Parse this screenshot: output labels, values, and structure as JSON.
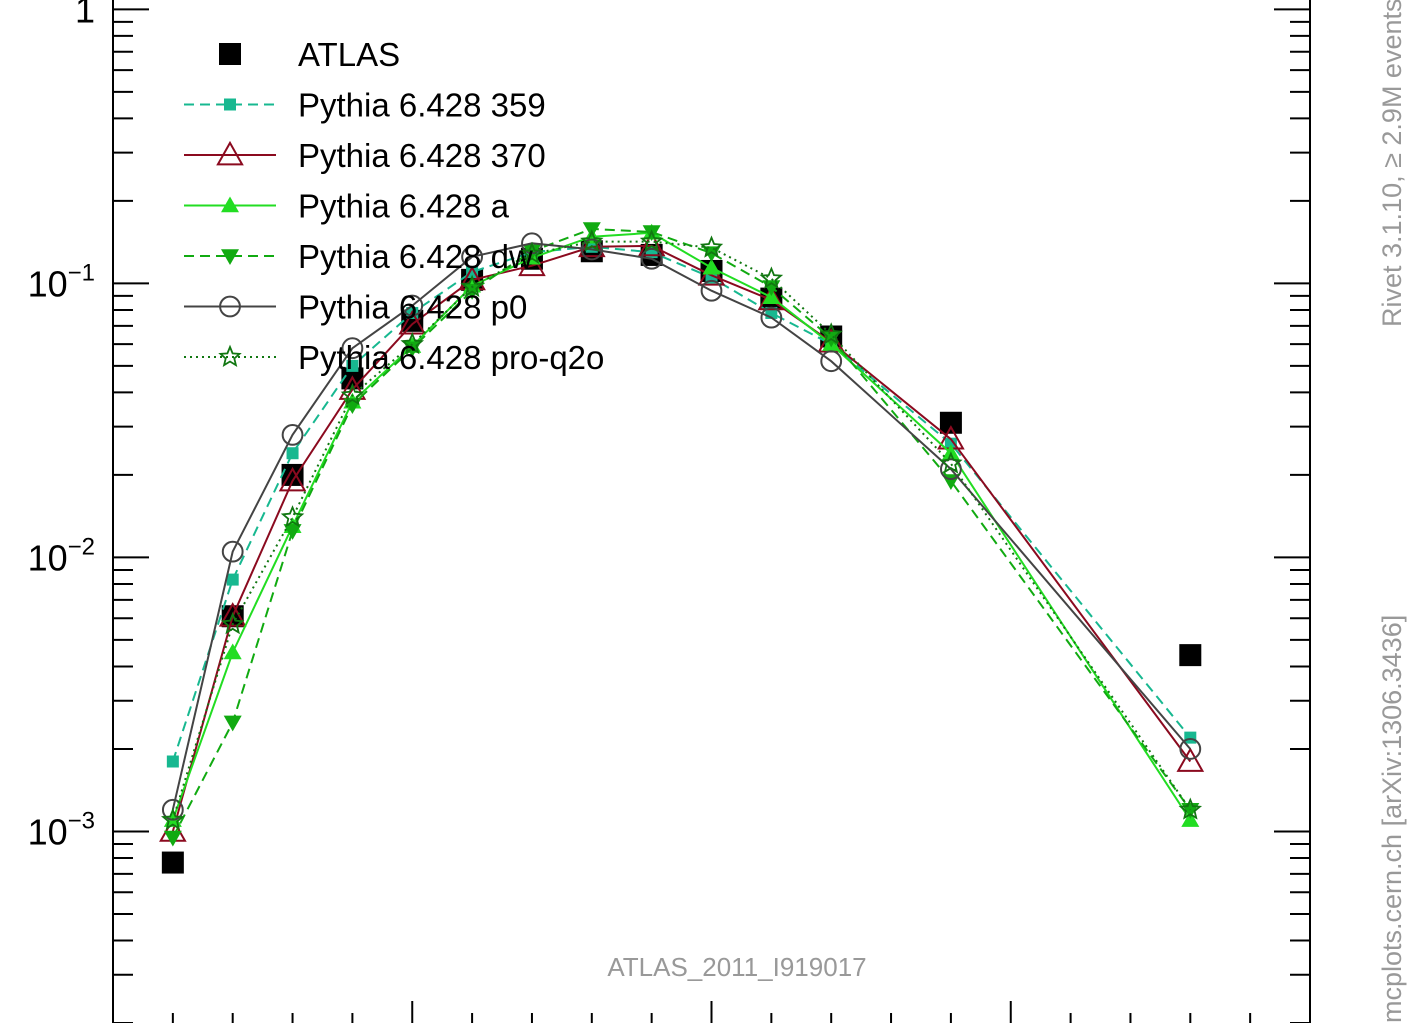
{
  "chart_data": {
    "type": "line",
    "yscale": "log",
    "ylim": [
      0.0002,
      1.1
    ],
    "y_ticks": [
      {
        "value": 1,
        "mantissa": "1",
        "exponent": ""
      },
      {
        "value": 0.1,
        "mantissa": "10",
        "exponent": "−1"
      },
      {
        "value": 0.01,
        "mantissa": "10",
        "exponent": "−2"
      },
      {
        "value": 0.001,
        "mantissa": "10",
        "exponent": "−3"
      }
    ],
    "x_bins": [
      1,
      2,
      3,
      4,
      5,
      6,
      7,
      8,
      9,
      10,
      11,
      12,
      13,
      14,
      15,
      16,
      17,
      18,
      19
    ],
    "xlim": [
      0,
      20
    ],
    "watermark": "ATLAS_2011_I919017",
    "side_text_top": "Rivet 3.1.10, ≥ 2.9M events",
    "side_text_bottom": "mcplots.cern.ch [arXiv:1306.3436]",
    "series": [
      {
        "name": "ATLAS",
        "color": "#000000",
        "marker": "square",
        "line": "none",
        "x": [
          1,
          2,
          3,
          4,
          5,
          6,
          7,
          8,
          9,
          10,
          11,
          12,
          14,
          18
        ],
        "y": [
          0.00077,
          0.0061,
          0.02,
          0.045,
          0.073,
          0.103,
          0.123,
          0.131,
          0.127,
          0.111,
          0.088,
          0.064,
          0.031,
          0.0044
        ]
      },
      {
        "name": "Pythia 6.428 359",
        "color": "#17b890",
        "marker": "square-small",
        "line": "dashed",
        "x": [
          1,
          2,
          3,
          4,
          5,
          6,
          7,
          8,
          9,
          10,
          11,
          12,
          14,
          18
        ],
        "y": [
          0.0018,
          0.0083,
          0.024,
          0.05,
          0.078,
          0.11,
          0.13,
          0.136,
          0.13,
          0.105,
          0.078,
          0.06,
          0.026,
          0.0022
        ]
      },
      {
        "name": "Pythia 6.428 370",
        "color": "#8b0a1f",
        "marker": "triangle-open",
        "line": "solid",
        "x": [
          1,
          2,
          3,
          4,
          5,
          6,
          7,
          8,
          9,
          10,
          11,
          12,
          14,
          18
        ],
        "y": [
          0.001,
          0.0061,
          0.019,
          0.041,
          0.071,
          0.103,
          0.116,
          0.136,
          0.137,
          0.107,
          0.087,
          0.061,
          0.027,
          0.0018
        ]
      },
      {
        "name": "Pythia 6.428 a",
        "color": "#22dd22",
        "marker": "triangle",
        "line": "solid",
        "x": [
          1,
          2,
          3,
          4,
          5,
          6,
          7,
          8,
          9,
          10,
          11,
          12,
          14,
          18
        ],
        "y": [
          0.0011,
          0.0045,
          0.013,
          0.037,
          0.059,
          0.098,
          0.124,
          0.148,
          0.153,
          0.114,
          0.089,
          0.06,
          0.024,
          0.0011
        ]
      },
      {
        "name": "Pythia 6.428 dw",
        "color": "#11aa11",
        "marker": "triangle-down",
        "line": "dashed",
        "x": [
          1,
          2,
          3,
          4,
          5,
          6,
          7,
          8,
          9,
          10,
          11,
          12,
          14,
          18
        ],
        "y": [
          0.00095,
          0.0025,
          0.0125,
          0.036,
          0.058,
          0.094,
          0.131,
          0.158,
          0.154,
          0.129,
          0.097,
          0.063,
          0.019,
          0.0012
        ]
      },
      {
        "name": "Pythia 6.428 p0",
        "color": "#444444",
        "marker": "circle-open",
        "line": "solid",
        "x": [
          1,
          2,
          3,
          4,
          5,
          6,
          7,
          8,
          9,
          10,
          11,
          12,
          14,
          18
        ],
        "y": [
          0.0012,
          0.0105,
          0.028,
          0.058,
          0.083,
          0.125,
          0.14,
          0.133,
          0.123,
          0.094,
          0.075,
          0.052,
          0.021,
          0.002
        ]
      },
      {
        "name": "Pythia 6.428 pro-q2o",
        "color": "#117711",
        "marker": "star-open",
        "line": "dotted",
        "x": [
          1,
          2,
          3,
          4,
          5,
          6,
          7,
          8,
          9,
          10,
          11,
          12,
          14,
          18
        ],
        "y": [
          0.0011,
          0.0057,
          0.014,
          0.039,
          0.06,
          0.097,
          0.128,
          0.142,
          0.142,
          0.135,
          0.104,
          0.065,
          0.022,
          0.0012
        ]
      }
    ]
  }
}
